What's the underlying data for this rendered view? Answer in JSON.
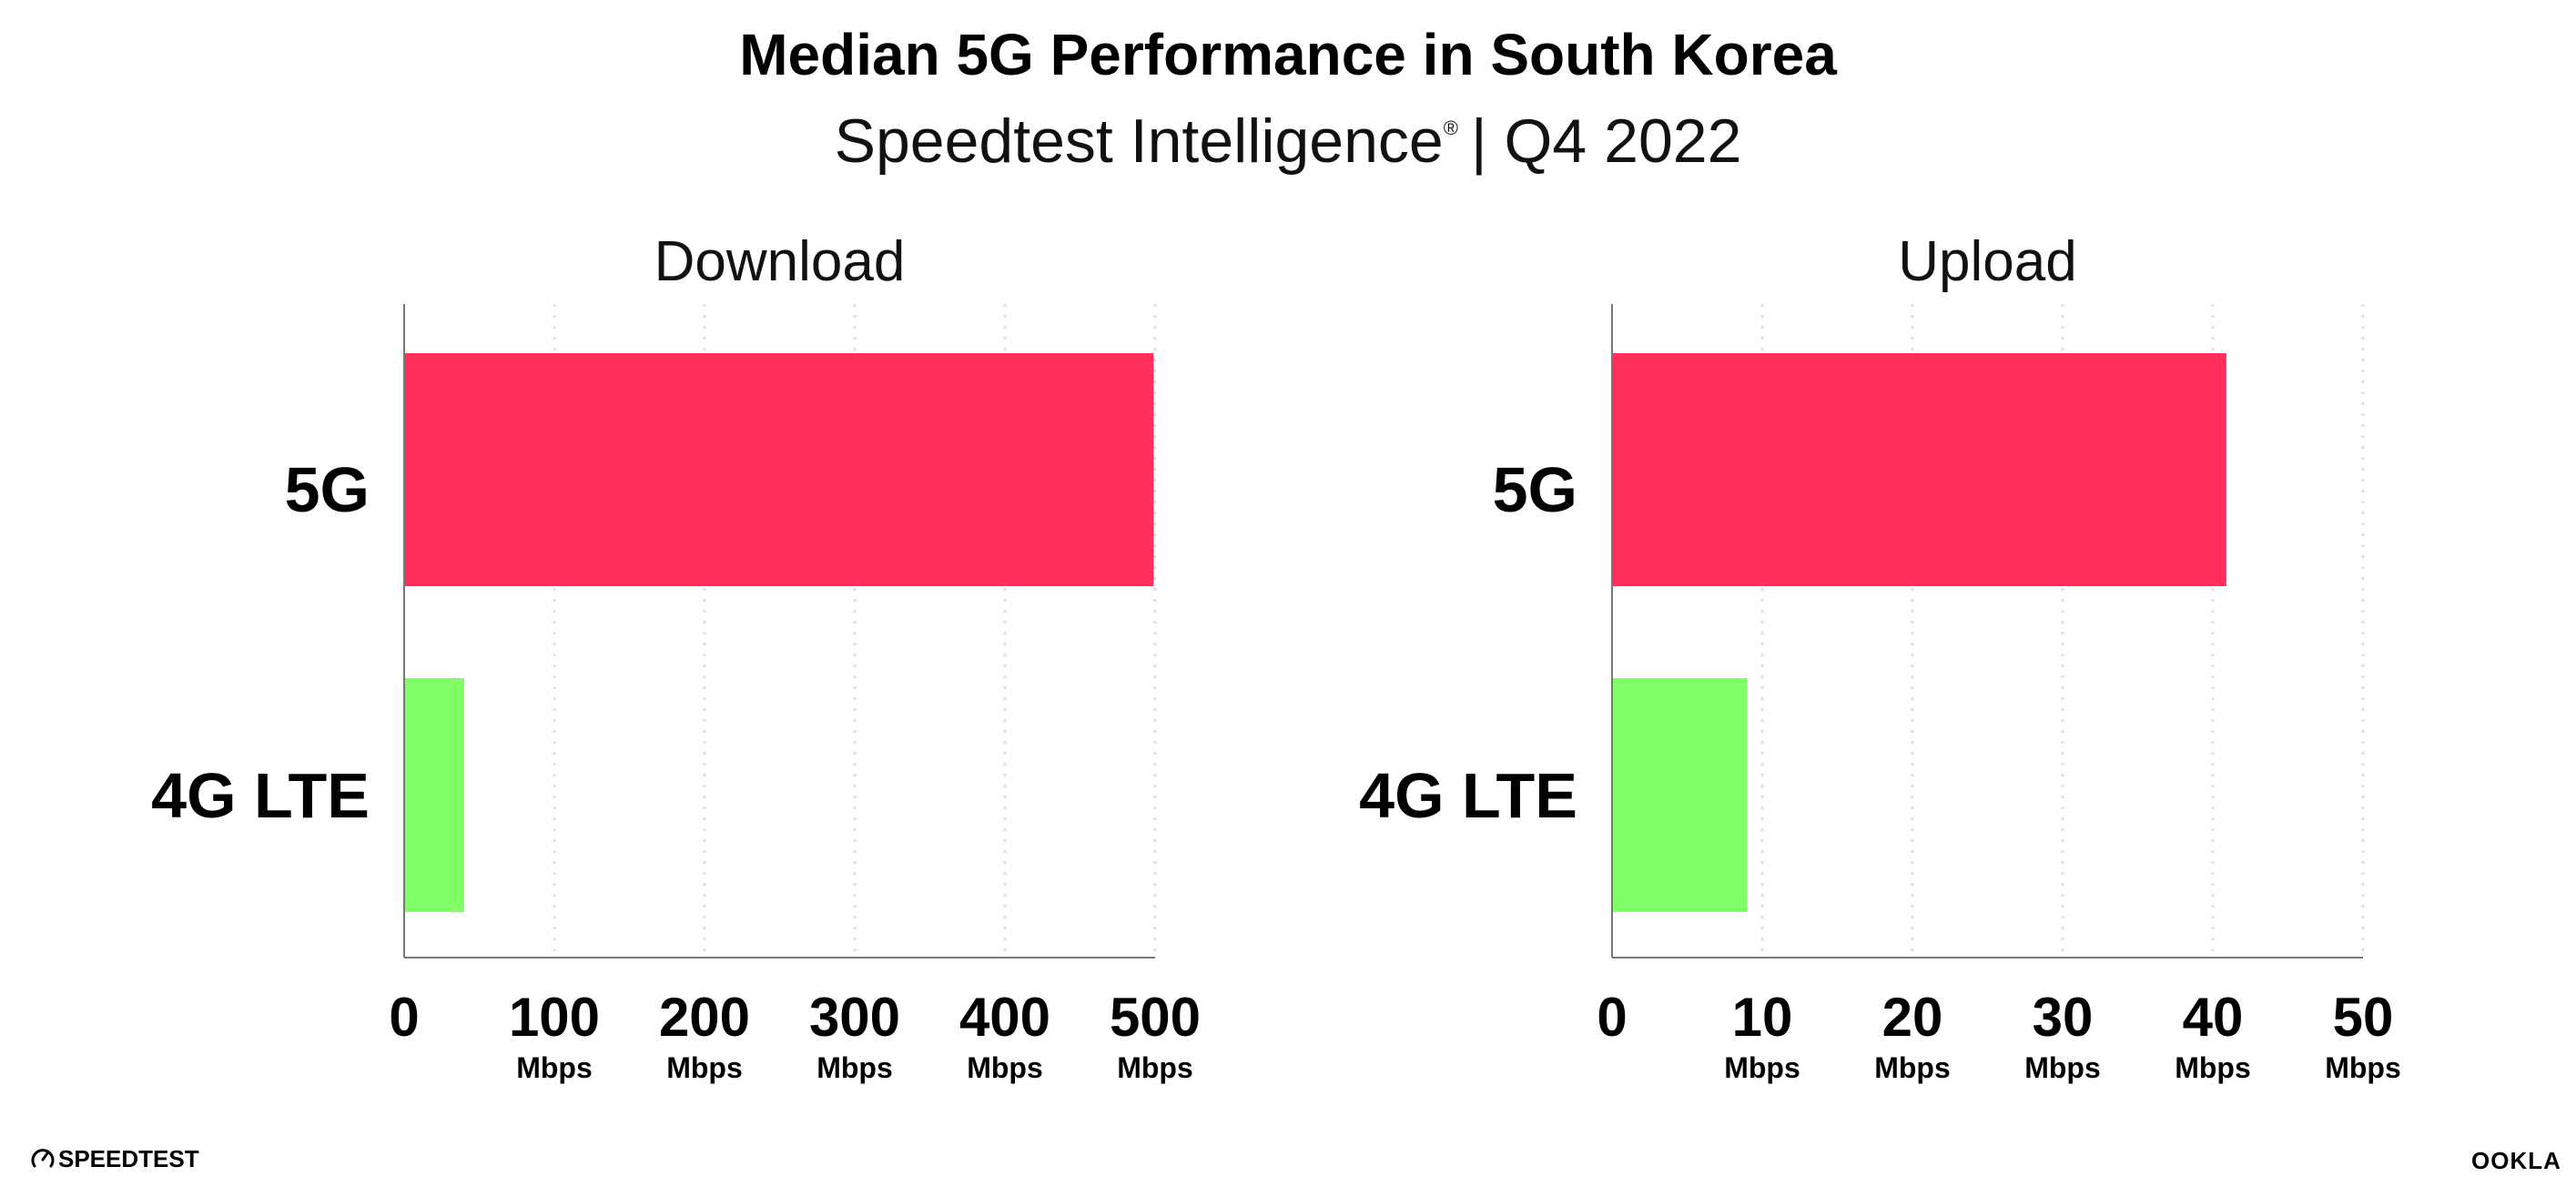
{
  "header": {
    "title": "Median 5G Performance in South Korea",
    "subtitle": "Speedtest Intelligence",
    "registered_mark": "®",
    "subtitle_period": "| Q4 2022"
  },
  "colors": {
    "5G": "#ff2e5b",
    "4G LTE": "#80ff66",
    "grid": "#dde0ea",
    "axis": "#777777"
  },
  "chart_data": [
    {
      "type": "bar",
      "orientation": "horizontal",
      "title": "Download",
      "categories": [
        "5G",
        "4G LTE"
      ],
      "values": [
        499,
        40
      ],
      "xlim": [
        0,
        500
      ],
      "ticks": [
        {
          "value": 0,
          "label": "0",
          "unit": ""
        },
        {
          "value": 100,
          "label": "100",
          "unit": "Mbps"
        },
        {
          "value": 200,
          "label": "200",
          "unit": "Mbps"
        },
        {
          "value": 300,
          "label": "300",
          "unit": "Mbps"
        },
        {
          "value": 400,
          "label": "400",
          "unit": "Mbps"
        },
        {
          "value": 500,
          "label": "500",
          "unit": "Mbps"
        }
      ],
      "grid": true
    },
    {
      "type": "bar",
      "orientation": "horizontal",
      "title": "Upload",
      "categories": [
        "5G",
        "4G LTE"
      ],
      "values": [
        40.9,
        9.0
      ],
      "xlim": [
        0,
        50
      ],
      "ticks": [
        {
          "value": 0,
          "label": "0",
          "unit": ""
        },
        {
          "value": 10,
          "label": "10",
          "unit": "Mbps"
        },
        {
          "value": 20,
          "label": "20",
          "unit": "Mbps"
        },
        {
          "value": 30,
          "label": "30",
          "unit": "Mbps"
        },
        {
          "value": 40,
          "label": "40",
          "unit": "Mbps"
        },
        {
          "value": 50,
          "label": "50",
          "unit": "Mbps"
        }
      ],
      "grid": true
    }
  ],
  "footer": {
    "speedtest_logo": "SPEEDTEST",
    "ookla_logo": "OOKLA"
  }
}
